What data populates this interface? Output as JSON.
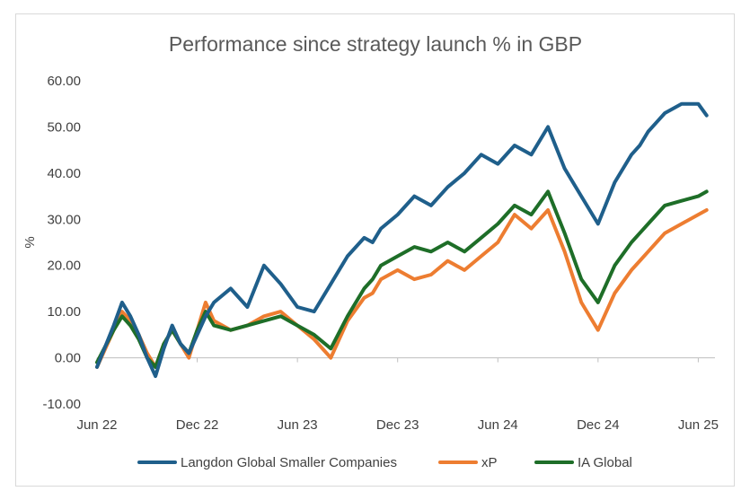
{
  "chart_data": {
    "type": "line",
    "title": "Performance since strategy launch % in GBP",
    "ylabel": "%",
    "xlabel": "",
    "ylim": [
      -10,
      60
    ],
    "y_ticks": [
      "-10.00",
      "0.00",
      "10.00",
      "20.00",
      "30.00",
      "40.00",
      "50.00",
      "60.00"
    ],
    "x_ticks": [
      "Jun 22",
      "Dec 22",
      "Jun 23",
      "Dec 23",
      "Jun 24",
      "Dec 24",
      "Jun 25"
    ],
    "x": [
      0,
      1,
      1.5,
      2,
      2.5,
      3,
      3.5,
      4,
      4.5,
      5,
      5.5,
      6,
      6.5,
      7,
      8,
      9,
      10,
      11,
      12,
      13,
      14,
      15,
      16,
      16.5,
      17,
      18,
      19,
      20,
      21,
      22,
      23,
      24,
      25,
      26,
      27,
      28,
      29,
      30,
      31,
      32,
      32.5,
      33,
      33.5,
      34,
      35,
      36,
      36.5
    ],
    "series": [
      {
        "name": "Langdon Global Smaller Companies",
        "color": "#1f5f8b",
        "values": [
          -2,
          7,
          12,
          9,
          5,
          0,
          -4,
          2,
          7,
          3,
          1,
          5,
          9,
          12,
          15,
          11,
          20,
          16,
          11,
          10,
          16,
          22,
          26,
          25,
          28,
          31,
          35,
          33,
          37,
          40,
          44,
          42,
          46,
          44,
          50,
          41,
          35,
          29,
          38,
          44,
          46,
          49,
          51,
          53,
          55,
          55,
          52.5
        ]
      },
      {
        "name": "xP",
        "color": "#ed7d31",
        "values": [
          -2,
          6,
          10,
          8,
          5,
          1,
          -2,
          3,
          6,
          3,
          0,
          6,
          12,
          8,
          6,
          7,
          9,
          10,
          7,
          4,
          0,
          8,
          13,
          14,
          17,
          19,
          17,
          18,
          21,
          19,
          22,
          25,
          31,
          28,
          32,
          23,
          12,
          6,
          14,
          19,
          21,
          23,
          25,
          27,
          29,
          31,
          32
        ]
      },
      {
        "name": "IA Global",
        "color": "#1e6e28",
        "values": [
          -1,
          6,
          9,
          7,
          4,
          0,
          -2,
          3,
          6,
          3,
          1,
          6,
          10,
          7,
          6,
          7,
          8,
          9,
          7,
          5,
          2,
          9,
          15,
          17,
          20,
          22,
          24,
          23,
          25,
          23,
          26,
          29,
          33,
          31,
          36,
          27,
          17,
          12,
          20,
          25,
          27,
          29,
          31,
          33,
          34,
          35,
          36
        ]
      }
    ],
    "legend_position": "bottom",
    "grid": false
  }
}
